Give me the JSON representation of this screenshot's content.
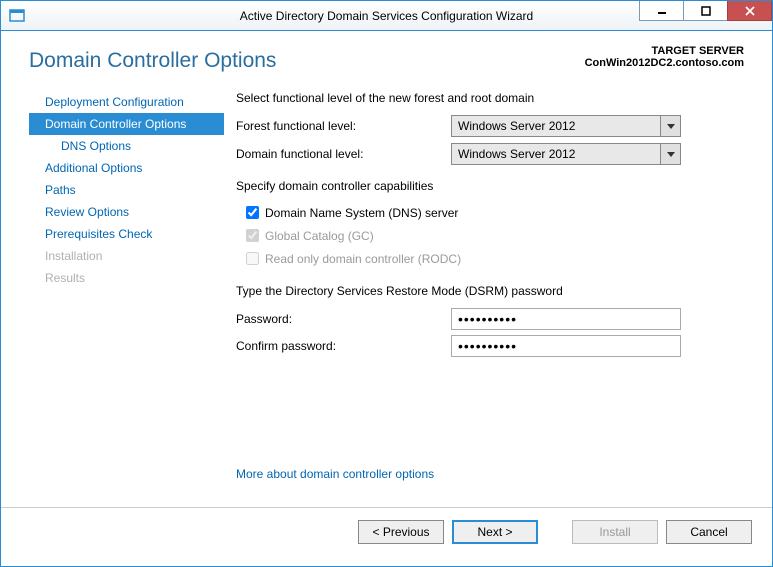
{
  "window": {
    "title": "Active Directory Domain Services Configuration Wizard"
  },
  "header": {
    "page_title": "Domain Controller Options",
    "target_server_label": "TARGET SERVER",
    "target_server_value": "ConWin2012DC2.contoso.com"
  },
  "sidebar": {
    "items": [
      {
        "label": "Deployment Configuration",
        "selected": false,
        "disabled": false,
        "indent": false
      },
      {
        "label": "Domain Controller Options",
        "selected": true,
        "disabled": false,
        "indent": false
      },
      {
        "label": "DNS Options",
        "selected": false,
        "disabled": false,
        "indent": true
      },
      {
        "label": "Additional Options",
        "selected": false,
        "disabled": false,
        "indent": false
      },
      {
        "label": "Paths",
        "selected": false,
        "disabled": false,
        "indent": false
      },
      {
        "label": "Review Options",
        "selected": false,
        "disabled": false,
        "indent": false
      },
      {
        "label": "Prerequisites Check",
        "selected": false,
        "disabled": false,
        "indent": false
      },
      {
        "label": "Installation",
        "selected": false,
        "disabled": true,
        "indent": false
      },
      {
        "label": "Results",
        "selected": false,
        "disabled": true,
        "indent": false
      }
    ]
  },
  "main": {
    "functional_level_heading": "Select functional level of the new forest and root domain",
    "forest_label": "Forest functional level:",
    "forest_value": "Windows Server 2012",
    "domain_label": "Domain functional level:",
    "domain_value": "Windows Server 2012",
    "capabilities_heading": "Specify domain controller capabilities",
    "cap_dns_label": "Domain Name System (DNS) server",
    "cap_dns_checked": true,
    "cap_gc_label": "Global Catalog (GC)",
    "cap_gc_checked": true,
    "cap_rodc_label": "Read only domain controller (RODC)",
    "cap_rodc_checked": false,
    "dsrm_heading": "Type the Directory Services Restore Mode (DSRM) password",
    "password_label": "Password:",
    "password_value": "••••••••••",
    "confirm_label": "Confirm password:",
    "confirm_value": "••••••••••",
    "more_link": "More about domain controller options"
  },
  "footer": {
    "previous": "< Previous",
    "next": "Next >",
    "install": "Install",
    "cancel": "Cancel"
  },
  "colors": {
    "accent": "#2a8dd4",
    "link": "#0066b3",
    "title_text": "#2a6ea0",
    "disabled_text": "#b0b0b0",
    "control_border": "#888888",
    "close_bg": "#c75050"
  }
}
